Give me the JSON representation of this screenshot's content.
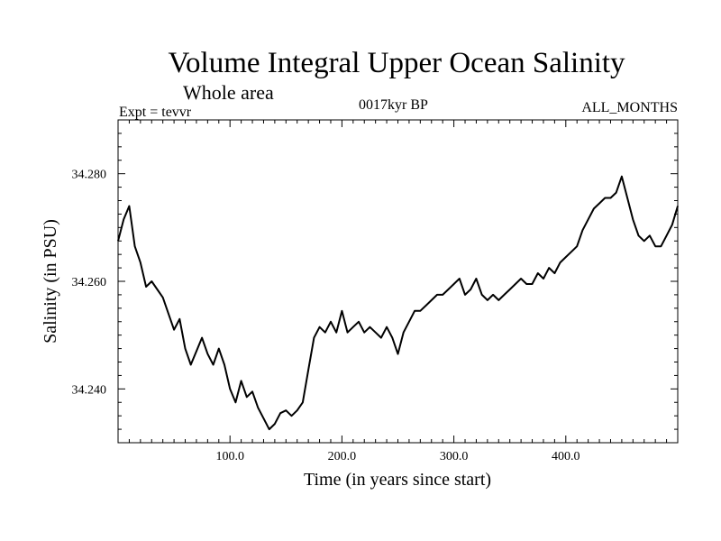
{
  "chart_data": {
    "type": "line",
    "title": "Volume Integral Upper Ocean Salinity",
    "subtitle": "Whole area",
    "experiment_label": "Expt = tevvr",
    "period_label": "0017kyr BP",
    "months_label": "ALL_MONTHS",
    "xlabel": "Time (in years since start)",
    "ylabel": "Salinity (in PSU)",
    "xlim": [
      0,
      500
    ],
    "ylim": [
      34.23,
      34.29
    ],
    "xticks": [
      100,
      200,
      300,
      400
    ],
    "xtick_labels": [
      "100.0",
      "200.0",
      "300.0",
      "400.0"
    ],
    "yticks": [
      34.24,
      34.26,
      34.28
    ],
    "ytick_labels": [
      "34.240",
      "34.260",
      "34.280"
    ],
    "grid": false,
    "series": [
      {
        "name": "Salinity",
        "color": "#000000",
        "x": [
          0,
          5,
          10,
          15,
          20,
          25,
          30,
          35,
          40,
          45,
          50,
          55,
          60,
          65,
          70,
          75,
          80,
          85,
          90,
          95,
          100,
          105,
          110,
          115,
          120,
          125,
          130,
          135,
          140,
          145,
          150,
          155,
          160,
          165,
          170,
          175,
          180,
          185,
          190,
          195,
          200,
          205,
          210,
          215,
          220,
          225,
          230,
          235,
          240,
          245,
          250,
          255,
          260,
          265,
          270,
          275,
          280,
          285,
          290,
          295,
          300,
          305,
          310,
          315,
          320,
          325,
          330,
          335,
          340,
          345,
          350,
          355,
          360,
          365,
          370,
          375,
          380,
          385,
          390,
          395,
          400,
          405,
          410,
          415,
          420,
          425,
          430,
          435,
          440,
          445,
          450,
          455,
          460,
          465,
          470,
          475,
          480,
          485,
          490,
          495,
          500
        ],
        "values": [
          34.2675,
          34.2715,
          34.274,
          34.2665,
          34.2635,
          34.259,
          34.26,
          34.2585,
          34.257,
          34.254,
          34.251,
          34.253,
          34.2475,
          34.2445,
          34.247,
          34.2495,
          34.2465,
          34.2445,
          34.2475,
          34.2445,
          34.24,
          34.2375,
          34.2415,
          34.2385,
          34.2395,
          34.2365,
          34.2345,
          34.2325,
          34.2335,
          34.2355,
          34.236,
          34.235,
          34.236,
          34.2375,
          34.2435,
          34.2495,
          34.2515,
          34.2505,
          34.2525,
          34.2505,
          34.2545,
          34.2505,
          34.2515,
          34.2525,
          34.2505,
          34.2515,
          34.2505,
          34.2495,
          34.2515,
          34.2495,
          34.2465,
          34.2505,
          34.2525,
          34.2545,
          34.2545,
          34.2555,
          34.2565,
          34.2575,
          34.2575,
          34.2585,
          34.2595,
          34.2605,
          34.2575,
          34.2585,
          34.2605,
          34.2575,
          34.2565,
          34.2575,
          34.2565,
          34.2575,
          34.2585,
          34.2595,
          34.2605,
          34.2595,
          34.2595,
          34.2615,
          34.2605,
          34.2625,
          34.2615,
          34.2635,
          34.2645,
          34.2655,
          34.2665,
          34.2695,
          34.2715,
          34.2735,
          34.2745,
          34.2755,
          34.2755,
          34.2765,
          34.2795,
          34.2755,
          34.2715,
          34.2685,
          34.2675,
          34.2685,
          34.2665,
          34.2665,
          34.2685,
          34.2705,
          34.274
        ]
      }
    ]
  }
}
